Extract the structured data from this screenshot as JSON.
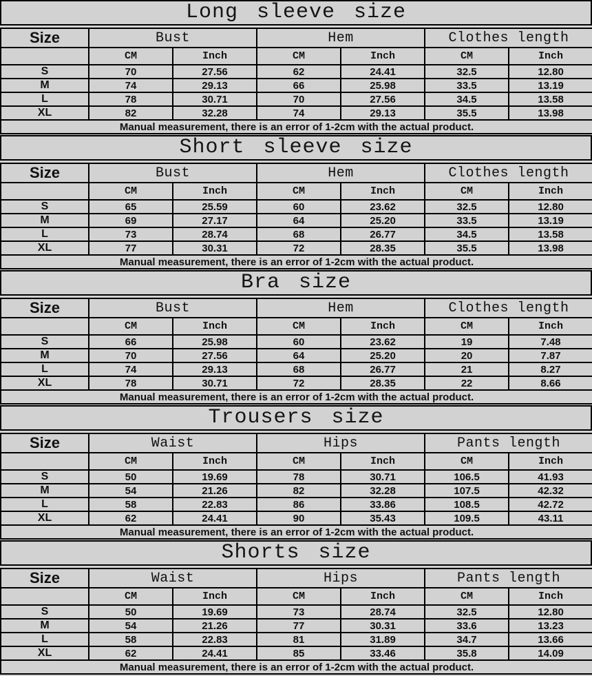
{
  "size_header": "Size",
  "units": {
    "cm": "CM",
    "inch": "Inch"
  },
  "note": "Manual measurement, there is an error of 1-2cm with the actual product.",
  "colors": {
    "background": "#d2d2d2",
    "grid_border": "#000000",
    "text": "#111111"
  },
  "tables": [
    {
      "title": "Long sleeve size",
      "groups": [
        "Bust",
        "Hem",
        "Clothes length"
      ],
      "rows": [
        {
          "size": "S",
          "values": [
            "70",
            "27.56",
            "62",
            "24.41",
            "32.5",
            "12.80"
          ]
        },
        {
          "size": "M",
          "values": [
            "74",
            "29.13",
            "66",
            "25.98",
            "33.5",
            "13.19"
          ]
        },
        {
          "size": "L",
          "values": [
            "78",
            "30.71",
            "70",
            "27.56",
            "34.5",
            "13.58"
          ]
        },
        {
          "size": "XL",
          "values": [
            "82",
            "32.28",
            "74",
            "29.13",
            "35.5",
            "13.98"
          ]
        }
      ]
    },
    {
      "title": "Short sleeve size",
      "groups": [
        "Bust",
        "Hem",
        "Clothes length"
      ],
      "rows": [
        {
          "size": "S",
          "values": [
            "65",
            "25.59",
            "60",
            "23.62",
            "32.5",
            "12.80"
          ]
        },
        {
          "size": "M",
          "values": [
            "69",
            "27.17",
            "64",
            "25.20",
            "33.5",
            "13.19"
          ]
        },
        {
          "size": "L",
          "values": [
            "73",
            "28.74",
            "68",
            "26.77",
            "34.5",
            "13.58"
          ]
        },
        {
          "size": "XL",
          "values": [
            "77",
            "30.31",
            "72",
            "28.35",
            "35.5",
            "13.98"
          ]
        }
      ]
    },
    {
      "title": "Bra size",
      "groups": [
        "Bust",
        "Hem",
        "Clothes length"
      ],
      "rows": [
        {
          "size": "S",
          "values": [
            "66",
            "25.98",
            "60",
            "23.62",
            "19",
            "7.48"
          ]
        },
        {
          "size": "M",
          "values": [
            "70",
            "27.56",
            "64",
            "25.20",
            "20",
            "7.87"
          ]
        },
        {
          "size": "L",
          "values": [
            "74",
            "29.13",
            "68",
            "26.77",
            "21",
            "8.27"
          ]
        },
        {
          "size": "XL",
          "values": [
            "78",
            "30.71",
            "72",
            "28.35",
            "22",
            "8.66"
          ]
        }
      ]
    },
    {
      "title": "Trousers size",
      "groups": [
        "Waist",
        "Hips",
        "Pants length"
      ],
      "rows": [
        {
          "size": "S",
          "values": [
            "50",
            "19.69",
            "78",
            "30.71",
            "106.5",
            "41.93"
          ]
        },
        {
          "size": "M",
          "values": [
            "54",
            "21.26",
            "82",
            "32.28",
            "107.5",
            "42.32"
          ]
        },
        {
          "size": "L",
          "values": [
            "58",
            "22.83",
            "86",
            "33.86",
            "108.5",
            "42.72"
          ]
        },
        {
          "size": "XL",
          "values": [
            "62",
            "24.41",
            "90",
            "35.43",
            "109.5",
            "43.11"
          ]
        }
      ]
    },
    {
      "title": "Shorts size",
      "groups": [
        "Waist",
        "Hips",
        "Pants length"
      ],
      "rows": [
        {
          "size": "S",
          "values": [
            "50",
            "19.69",
            "73",
            "28.74",
            "32.5",
            "12.80"
          ]
        },
        {
          "size": "M",
          "values": [
            "54",
            "21.26",
            "77",
            "30.31",
            "33.6",
            "13.23"
          ]
        },
        {
          "size": "L",
          "values": [
            "58",
            "22.83",
            "81",
            "31.89",
            "34.7",
            "13.66"
          ]
        },
        {
          "size": "XL",
          "values": [
            "62",
            "24.41",
            "85",
            "33.46",
            "35.8",
            "14.09"
          ]
        }
      ]
    }
  ]
}
